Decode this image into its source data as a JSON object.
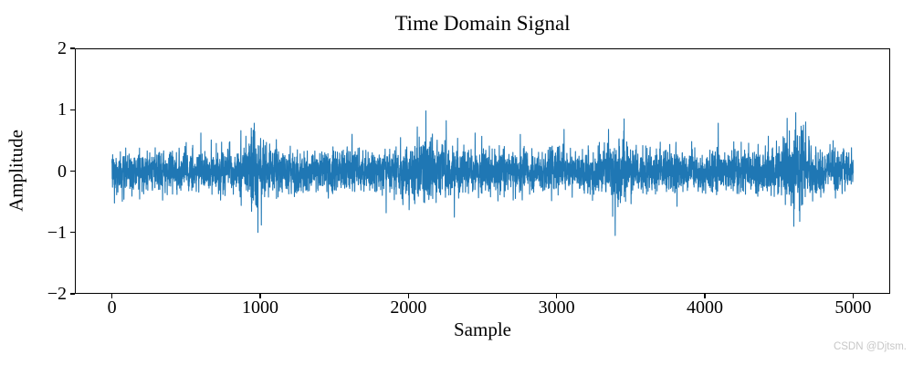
{
  "watermark": {
    "text": "CSDN @Djtsm.",
    "color": "#c7c7c7"
  },
  "chart_data": {
    "type": "line",
    "title": "Time Domain Signal",
    "xlabel": "Sample",
    "ylabel": "Amplitude",
    "xlim": [
      -250,
      5250
    ],
    "ylim": [
      -2,
      2
    ],
    "x_ticks": [
      0,
      1000,
      2000,
      3000,
      4000,
      5000
    ],
    "x_tick_labels": [
      "0",
      "1000",
      "2000",
      "3000",
      "4000",
      "5000"
    ],
    "y_ticks": [
      2,
      1,
      0,
      -1,
      -2
    ],
    "y_tick_labels": [
      "2",
      "1",
      "0",
      "−1",
      "−2"
    ],
    "grid": false,
    "legend": false,
    "line_color": "#1f77b4",
    "line_width": 1.1,
    "background": "#ffffff",
    "spine_color": "#000000",
    "signal": {
      "description": "Dense zero-mean gaussian noise, 5001 samples (0..5000), std ~0.17, typical band +/-0.5, with localized high-variance bursts and isolated spikes reaching about +1.0 (near sample 2120) and -1.05 (near sample 3395).",
      "n_samples": 5001,
      "noise_std": 0.17,
      "seed": 3,
      "clamp": 1.06,
      "bursts": [
        {
          "center": 975,
          "width": 55,
          "amp": 0.85
        },
        {
          "center": 2130,
          "width": 90,
          "amp": 0.5
        },
        {
          "center": 3420,
          "width": 45,
          "amp": 0.6
        },
        {
          "center": 4620,
          "width": 80,
          "amp": 0.85
        }
      ],
      "spikes": [
        [
          600,
          0.62
        ],
        [
          870,
          0.66
        ],
        [
          940,
          0.7
        ],
        [
          960,
          0.78
        ],
        [
          985,
          -1.0
        ],
        [
          1008,
          -0.88
        ],
        [
          1620,
          0.6
        ],
        [
          1850,
          -0.68
        ],
        [
          2060,
          0.72
        ],
        [
          2118,
          0.98
        ],
        [
          2255,
          0.82
        ],
        [
          2310,
          -0.75
        ],
        [
          2450,
          0.62
        ],
        [
          3050,
          0.68
        ],
        [
          3395,
          -1.05
        ],
        [
          3455,
          0.85
        ],
        [
          4090,
          0.78
        ],
        [
          4555,
          0.86
        ],
        [
          4600,
          -0.9
        ],
        [
          4640,
          -0.82
        ],
        [
          4680,
          0.8
        ]
      ]
    }
  }
}
